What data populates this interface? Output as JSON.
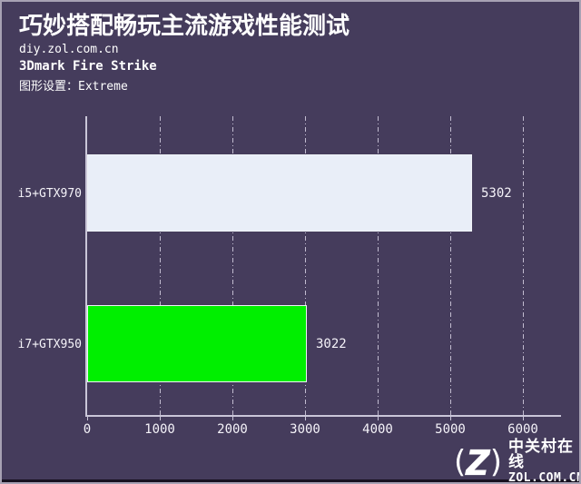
{
  "header": {
    "title": "巧妙搭配畅玩主流游戏性能测试",
    "site_url": "diy.zol.com.cn",
    "benchmark_name": "3Dmark Fire Strike",
    "graphics_setting": "图形设置：Extreme"
  },
  "chart_data": {
    "type": "bar",
    "orientation": "horizontal",
    "title": "3Dmark Fire Strike",
    "subtitle": "图形设置：Extreme",
    "categories": [
      "i5+GTX970",
      "i7+GTX950"
    ],
    "values": [
      5302,
      3022
    ],
    "value_labels": [
      "5302",
      "3022"
    ],
    "bar_colors": [
      "#e9eef8",
      "#00ef00"
    ],
    "xticks": [
      0,
      1000,
      2000,
      3000,
      4000,
      5000,
      6000
    ],
    "xlim": [
      0,
      6540
    ],
    "grid": "vertical-dashdot",
    "legend": "none"
  },
  "watermark": {
    "paren_left": "(",
    "paren_right": ")",
    "brand_cn": "中关村在线",
    "brand_en": "ZOL.COM.CN"
  },
  "colors": {
    "background": "#453c5c",
    "axis": "#cac6d8",
    "gridline": "#d8d3e4",
    "text": "#ffffff",
    "bar_i5_gtx970": "#e9eef8",
    "bar_i7_gtx950": "#00ef00",
    "bottom_strip": "#171120",
    "frame_border": "#a7a1b3"
  }
}
